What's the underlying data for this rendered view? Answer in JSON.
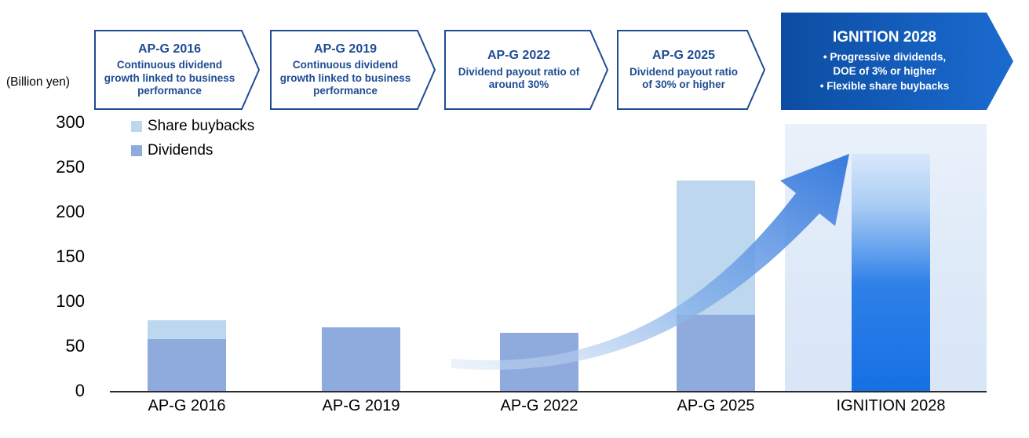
{
  "unit_label": "(Billion yen)",
  "legend": [
    {
      "label": "Share buybacks",
      "color": "#BDD7EE"
    },
    {
      "label": "Dividends",
      "color": "#8FAADC"
    }
  ],
  "banners": [
    {
      "title": "AP-G 2016",
      "body": "Continuous dividend growth linked to business performance",
      "style": "outline"
    },
    {
      "title": "AP-G 2019",
      "body": "Continuous dividend growth linked to business performance",
      "style": "outline"
    },
    {
      "title": "AP-G 2022",
      "body": "Dividend payout ratio of around 30%",
      "style": "outline"
    },
    {
      "title": "AP-G 2025",
      "body": "Dividend payout ratio of 30% or higher",
      "style": "outline"
    },
    {
      "title": "IGNITION 2028",
      "bullets": [
        "• Progressive dividends,\nDOE of 3% or higher",
        "• Flexible share buybacks"
      ],
      "style": "solid"
    }
  ],
  "colors": {
    "navy": "#1F4C93",
    "banner_solid_left": "#0C4DA2",
    "banner_solid_right": "#1B6BD0",
    "arrow_start": "#D6E4F7",
    "arrow_end": "#2E74DC"
  },
  "chart_data": {
    "type": "bar",
    "stacked": true,
    "title": "Shareholder returns by mid-term plan period",
    "categories": [
      "AP-G 2016",
      "AP-G 2019",
      "AP-G 2022",
      "AP-G 2025",
      "IGNITION 2028"
    ],
    "series": [
      {
        "name": "Dividends",
        "color": "#8FAADC",
        "values": [
          58,
          71,
          65,
          85,
          null
        ]
      },
      {
        "name": "Share buybacks",
        "color": "#BDD7EE",
        "values": [
          21,
          0,
          0,
          150,
          null
        ]
      }
    ],
    "projection": {
      "category": "IGNITION 2028",
      "total": 265,
      "style": "gradient",
      "colors": [
        "#D9E8FB",
        "#A9CCF4",
        "#2F80E8",
        "#1670E4"
      ]
    },
    "ylabel": "(Billion yen)",
    "yticks": [
      0,
      50,
      100,
      150,
      200,
      250,
      300
    ],
    "ylim": [
      0,
      300
    ],
    "grid": false,
    "legend_position": "top-left-inside"
  }
}
